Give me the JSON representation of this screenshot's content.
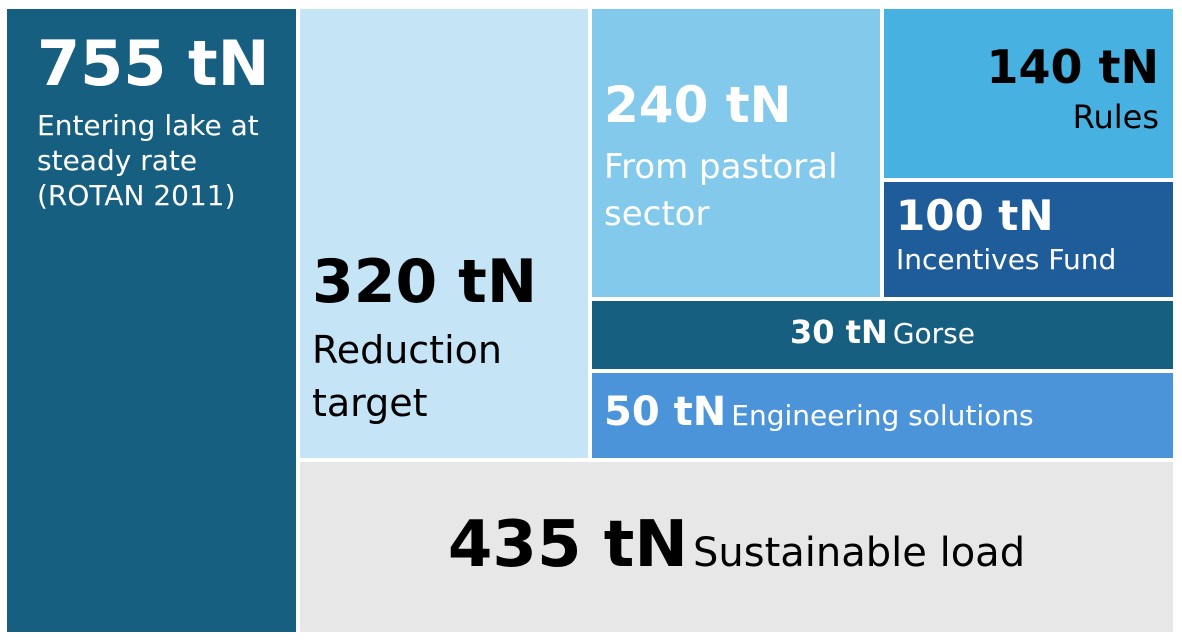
{
  "blocks": [
    {
      "value": "755 tN",
      "label": [
        "Entering lake at",
        "steady rate",
        "(ROTAN 2011)"
      ]
    },
    {
      "value": "320 tN",
      "label": [
        "Reduction",
        "target"
      ]
    },
    {
      "value": "240 tN",
      "label": [
        "From pastoral",
        "sector"
      ]
    },
    {
      "value": "140 tN",
      "label": [
        "Rules"
      ]
    },
    {
      "value": "100 tN",
      "label": [
        "Incentives Fund"
      ]
    },
    {
      "value": "30 tN",
      "label": [
        "Gorse"
      ]
    },
    {
      "value": "50 tN",
      "label": [
        "Engineering solutions"
      ]
    },
    {
      "value": "435 tN",
      "label": [
        "Sustainable load"
      ]
    }
  ]
}
